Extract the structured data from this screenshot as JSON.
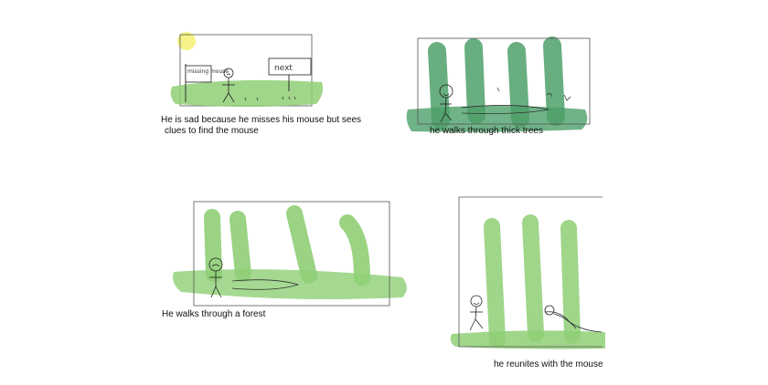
{
  "panels": [
    {
      "caption_line1": "He is sad because he misses his mouse but sees",
      "caption_line2": "clues to   find the mouse",
      "sign_left": "missing mouse",
      "sign_right": "next"
    },
    {
      "caption": "he walks through thick trees"
    },
    {
      "caption": "He walks through a forest"
    },
    {
      "caption": "he reunites with the mouse"
    }
  ],
  "colors": {
    "grass": "#8fcf76",
    "dark_trees": "#4ea06a",
    "light_trees": "#8fcf76",
    "sun": "#f4f27a",
    "frame": "#555555"
  }
}
